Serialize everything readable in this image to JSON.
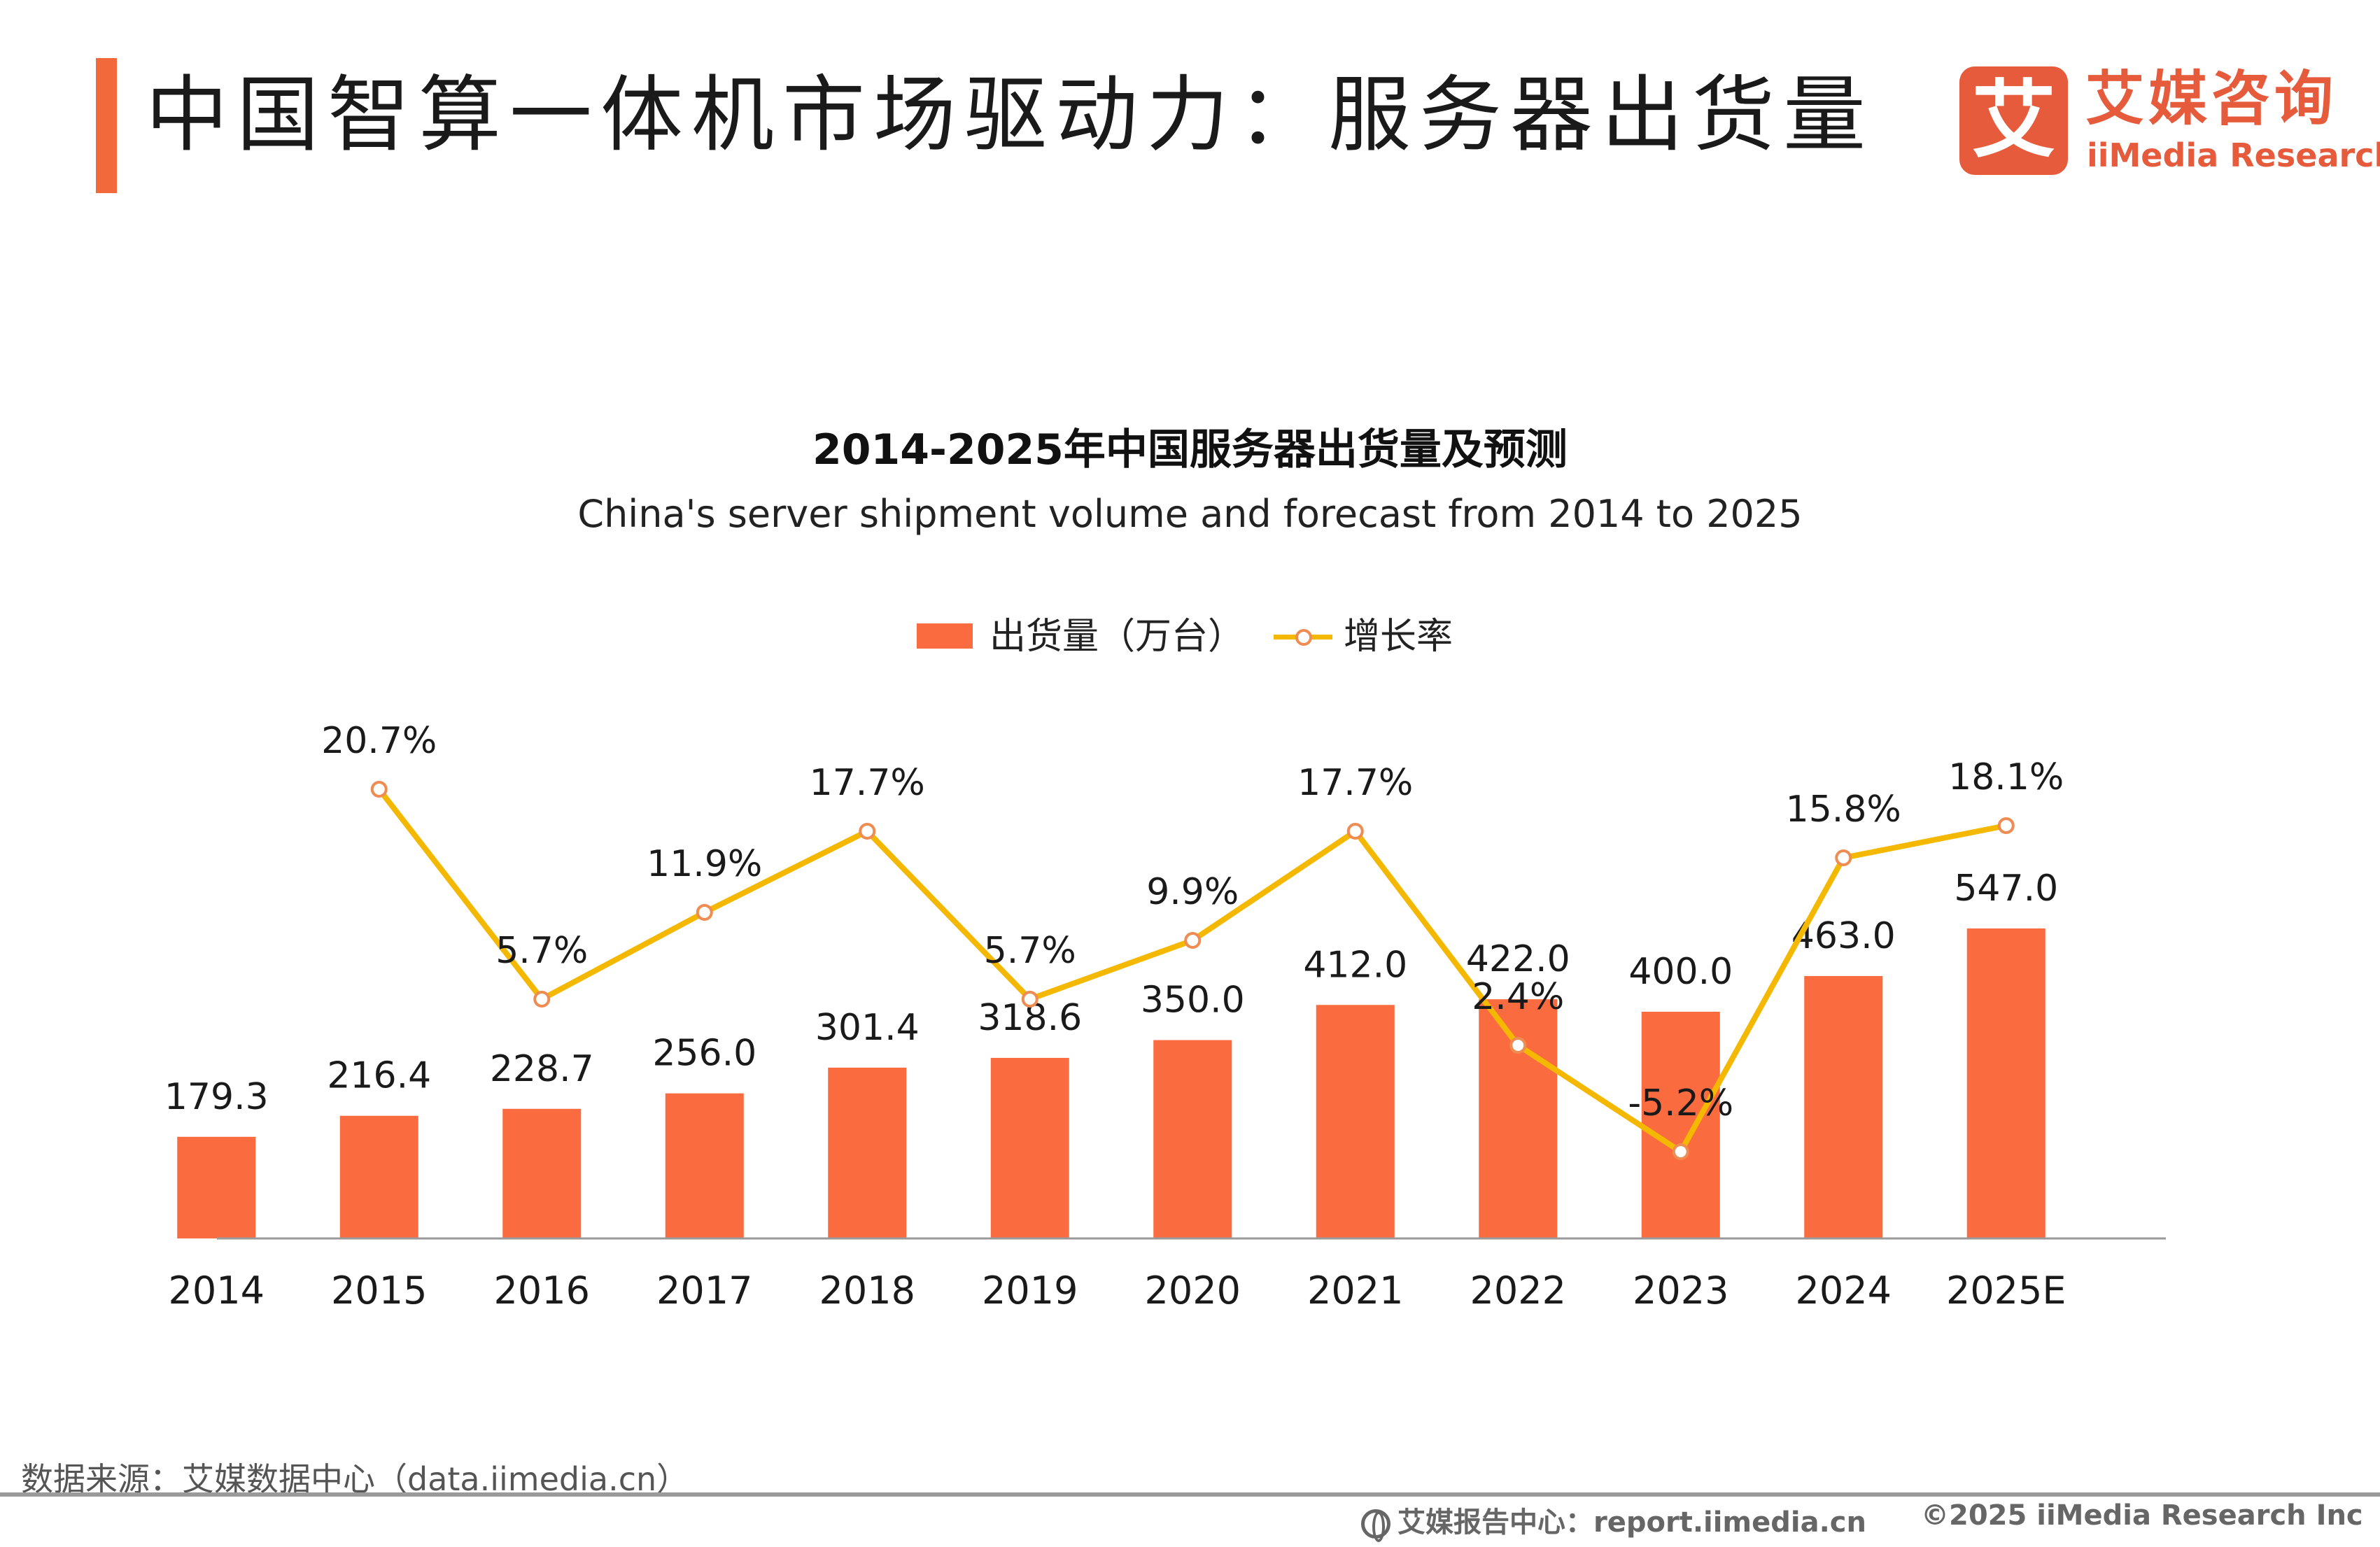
{
  "header": {
    "title": "中国智算一体机市场驱动力：服务器出货量",
    "logo_cn": "艾媒咨询",
    "logo_en": "iiMedia Research",
    "logo_mark": "艾"
  },
  "colors": {
    "accent": "#f26a3c",
    "bar": "#fa6c3f",
    "line": "#f5b800",
    "logo": "#e55b3c"
  },
  "chart_data": {
    "type": "bar",
    "title": "2014-2025年中国服务器出货量及预测",
    "subtitle": "China's server shipment volume and forecast from 2014 to 2025",
    "categories": [
      "2014",
      "2015",
      "2016",
      "2017",
      "2018",
      "2019",
      "2020",
      "2021",
      "2022",
      "2023",
      "2024",
      "2025E"
    ],
    "series": [
      {
        "name": "出货量（万台）",
        "type": "bar",
        "values": [
          179.3,
          216.4,
          228.7,
          256.0,
          301.4,
          318.6,
          350.0,
          412.0,
          422.0,
          400.0,
          463.0,
          547.0
        ],
        "labels": [
          "179.3",
          "216.4",
          "228.7",
          "256.0",
          "301.4",
          "318.6",
          "350.0",
          "412.0",
          "422.0",
          "400.0",
          "463.0",
          "547.0"
        ]
      },
      {
        "name": "增长率",
        "type": "line",
        "values": [
          null,
          20.7,
          5.7,
          11.9,
          17.7,
          5.7,
          9.9,
          17.7,
          2.4,
          -5.2,
          15.8,
          18.1
        ],
        "labels": [
          "",
          "20.7%",
          "5.7%",
          "11.9%",
          "17.7%",
          "5.7%",
          "9.9%",
          "17.7%",
          "2.4%",
          "-5.2%",
          "15.8%",
          "18.1%"
        ]
      }
    ],
    "legend_position": "top-center",
    "grid": false
  },
  "footer": {
    "source": "数据来源：艾媒数据中心（data.iimedia.cn）",
    "report": "艾媒报告中心：report.iimedia.cn",
    "copyright": "©2025  iiMedia Research  Inc"
  }
}
